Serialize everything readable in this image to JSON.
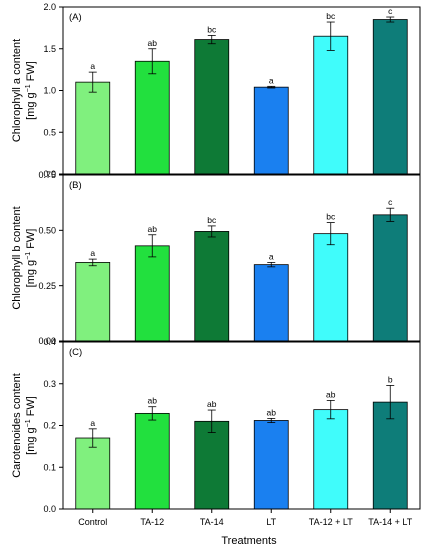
{
  "xlabel": "Treatments",
  "categories": [
    "Control",
    "TA-12",
    "TA-14",
    "LT",
    "TA-12 + LT",
    "TA-14 + LT"
  ],
  "colors": [
    "#80f07e",
    "#22e03e",
    "#0e7a36",
    "#1a80f0",
    "#40fcfb",
    "#0e7d79"
  ],
  "chart_data": [
    {
      "type": "bar",
      "panel_label": "(A)",
      "ylabel_line1": "Chlorophyll a content",
      "ylabel_line2_prefix": "[mg g",
      "ylabel_line2_sup": "−1",
      "ylabel_line2_suffix": " FW]",
      "ylim": [
        0,
        2.0
      ],
      "yticks": [
        0.0,
        0.5,
        1.0,
        1.5,
        2.0
      ],
      "ytick_labels": [
        "0.0",
        "0.5",
        "1.0",
        "1.5",
        "2.0"
      ],
      "categories": [
        "Control",
        "TA-12",
        "TA-14",
        "LT",
        "TA-12 + LT",
        "TA-14 + LT"
      ],
      "values": [
        1.1,
        1.35,
        1.61,
        1.04,
        1.65,
        1.85
      ],
      "errors": [
        0.12,
        0.15,
        0.05,
        0.01,
        0.17,
        0.03
      ],
      "labels": [
        "a",
        "ab",
        "bc",
        "a",
        "bc",
        "c"
      ],
      "grid": false
    },
    {
      "type": "bar",
      "panel_label": "(B)",
      "ylabel_line1": "Chlorophyll b content",
      "ylabel_line2_prefix": "[mg g",
      "ylabel_line2_sup": "−1",
      "ylabel_line2_suffix": " FW]",
      "ylim": [
        0,
        0.75
      ],
      "yticks": [
        0.0,
        0.25,
        0.5,
        0.75
      ],
      "ytick_labels": [
        "0.00",
        "0.25",
        "0.50",
        "0.75"
      ],
      "categories": [
        "Control",
        "TA-12",
        "TA-14",
        "LT",
        "TA-12 + LT",
        "TA-14 + LT"
      ],
      "values": [
        0.355,
        0.43,
        0.495,
        0.345,
        0.485,
        0.57
      ],
      "errors": [
        0.015,
        0.05,
        0.025,
        0.01,
        0.05,
        0.03
      ],
      "labels": [
        "a",
        "ab",
        "bc",
        "a",
        "bc",
        "c"
      ],
      "grid": false
    },
    {
      "type": "bar",
      "panel_label": "(C)",
      "ylabel_line1": "Carotenoides content",
      "ylabel_line2_prefix": "[mg g",
      "ylabel_line2_sup": "−1",
      "ylabel_line2_suffix": " FW]",
      "ylim": [
        0,
        0.4
      ],
      "yticks": [
        0.0,
        0.1,
        0.2,
        0.3,
        0.4
      ],
      "ytick_labels": [
        "0.0",
        "0.1",
        "0.2",
        "0.3",
        "0.4"
      ],
      "categories": [
        "Control",
        "TA-12",
        "TA-14",
        "LT",
        "TA-12 + LT",
        "TA-14 + LT"
      ],
      "values": [
        0.17,
        0.229,
        0.21,
        0.212,
        0.238,
        0.256
      ],
      "errors": [
        0.022,
        0.016,
        0.027,
        0.005,
        0.022,
        0.04
      ],
      "labels": [
        "a",
        "ab",
        "ab",
        "ab",
        "ab",
        "b"
      ],
      "grid": false
    }
  ]
}
